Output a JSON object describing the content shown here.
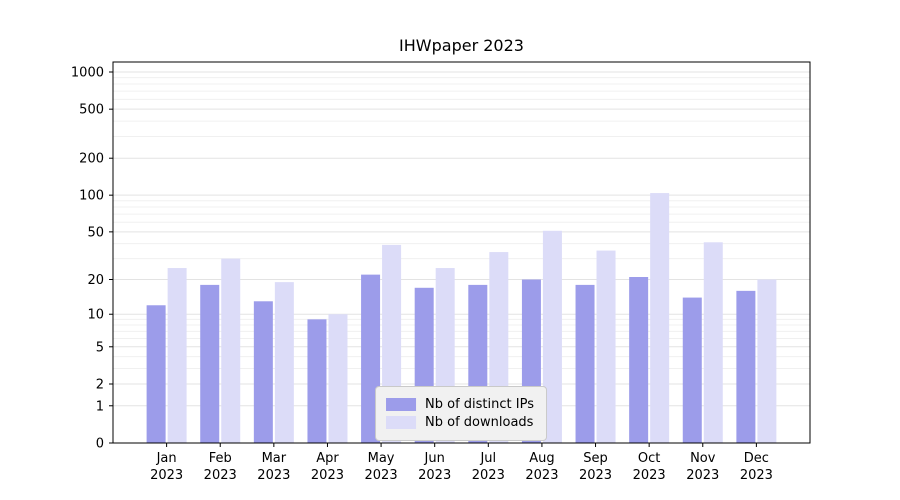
{
  "chart_data": {
    "type": "bar",
    "title": "IHWpaper 2023",
    "categories": [
      "Jan",
      "Feb",
      "Mar",
      "Apr",
      "May",
      "Jun",
      "Jul",
      "Aug",
      "Sep",
      "Oct",
      "Nov",
      "Dec"
    ],
    "category_year": "2023",
    "series": [
      {
        "name": "Nb of distinct IPs",
        "color": "#9c9cea",
        "values": [
          12,
          18,
          13,
          9,
          22,
          17,
          18,
          20,
          18,
          21,
          14,
          16
        ]
      },
      {
        "name": "Nb of downloads",
        "color": "#dcdcf8",
        "values": [
          25,
          30,
          19,
          10,
          39,
          25,
          34,
          51,
          35,
          104,
          41,
          20
        ]
      }
    ],
    "yscale": "log1p",
    "yticks": [
      0,
      1,
      2,
      5,
      10,
      20,
      50,
      100,
      200,
      500,
      1000
    ],
    "xlabel": "",
    "ylabel": "",
    "grid": true,
    "legend_position": "lower center"
  },
  "colors": {
    "background": "#ffffff",
    "axis": "#000000",
    "grid_major": "#e3e3e3",
    "grid_minor": "#f0f0f0",
    "legend_bg": "#f1f1f1",
    "legend_border": "#c9c9c9"
  }
}
